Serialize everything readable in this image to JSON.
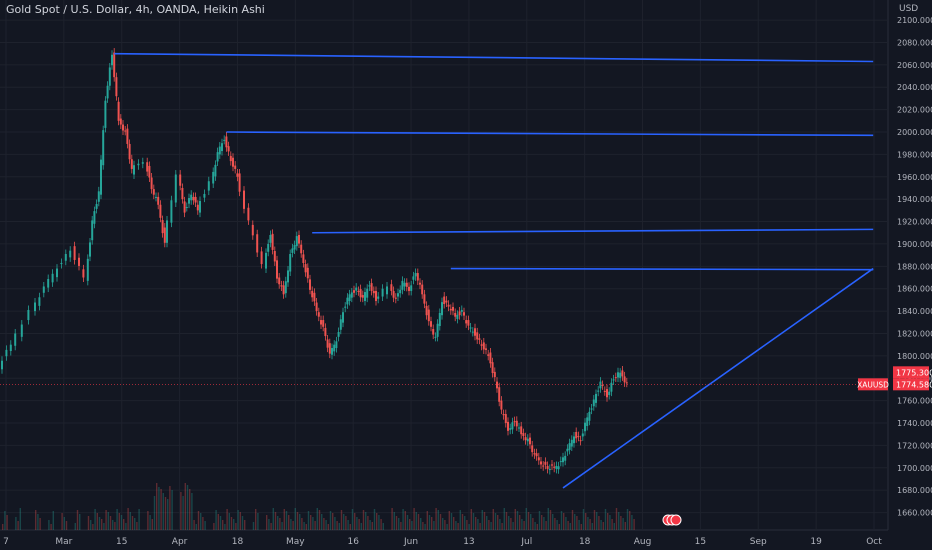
{
  "header": {
    "title": "Gold Spot / U.S. Dollar, 4h, OANDA, Heikin Ashi",
    "unit": "USD"
  },
  "chart_data": {
    "type": "candlestick",
    "symbol": "XAUUSD",
    "y_ticks": [
      1660,
      1680,
      1700,
      1720,
      1740,
      1760,
      1780,
      1800,
      1820,
      1840,
      1860,
      1880,
      1900,
      1920,
      1940,
      1960,
      1980,
      2000,
      2020,
      2040,
      2060,
      2080,
      2100
    ],
    "y_tick_labels": [
      "1660.000",
      "1680.000",
      "1700.000",
      "1720.000",
      "1740.000",
      "1760.000",
      "1780.000",
      "1800.000",
      "1820.000",
      "1840.000",
      "1860.000",
      "1880.000",
      "1900.000",
      "1920.000",
      "1940.000",
      "1960.000",
      "1980.000",
      "2000.000",
      "2020.000",
      "2040.000",
      "2060.000",
      "2080.000",
      "2100.000"
    ],
    "ylim": [
      1648,
      2109
    ],
    "x_ticks": [
      "7",
      "Mar",
      "15",
      "Apr",
      "18",
      "May",
      "16",
      "Jun",
      "13",
      "Jul",
      "18",
      "Aug",
      "15",
      "Sep",
      "19",
      "Oct"
    ],
    "price_labels": {
      "current": "1774.580",
      "alt": "1775.300",
      "symbol_label": "XAUUSD"
    },
    "price_path": [
      [
        0,
        1790
      ],
      [
        2,
        1810
      ],
      [
        5,
        1840
      ],
      [
        7,
        1860
      ],
      [
        9,
        1880
      ],
      [
        11,
        1895
      ],
      [
        13,
        1870
      ],
      [
        14,
        1920
      ],
      [
        15,
        1945
      ],
      [
        16,
        2030
      ],
      [
        17,
        2070
      ],
      [
        18,
        2010
      ],
      [
        19,
        2000
      ],
      [
        20,
        1965
      ],
      [
        22,
        1975
      ],
      [
        23,
        1950
      ],
      [
        24,
        1935
      ],
      [
        25,
        1900
      ],
      [
        27,
        1960
      ],
      [
        28,
        1930
      ],
      [
        29,
        1945
      ],
      [
        30,
        1930
      ],
      [
        32,
        1955
      ],
      [
        33,
        1980
      ],
      [
        34,
        1995
      ],
      [
        35,
        1975
      ],
      [
        36,
        1960
      ],
      [
        38,
        1920
      ],
      [
        40,
        1880
      ],
      [
        41,
        1910
      ],
      [
        42,
        1870
      ],
      [
        43,
        1855
      ],
      [
        44,
        1890
      ],
      [
        45,
        1905
      ],
      [
        46,
        1885
      ],
      [
        47,
        1860
      ],
      [
        48,
        1840
      ],
      [
        49,
        1825
      ],
      [
        50,
        1800
      ],
      [
        51,
        1815
      ],
      [
        52,
        1840
      ],
      [
        53,
        1855
      ],
      [
        54,
        1860
      ],
      [
        55,
        1850
      ],
      [
        56,
        1865
      ],
      [
        57,
        1850
      ],
      [
        59,
        1862
      ],
      [
        60,
        1850
      ],
      [
        61,
        1865
      ],
      [
        62,
        1860
      ],
      [
        63,
        1875
      ],
      [
        64,
        1855
      ],
      [
        65,
        1830
      ],
      [
        66,
        1815
      ],
      [
        67,
        1850
      ],
      [
        68,
        1845
      ],
      [
        69,
        1835
      ],
      [
        70,
        1840
      ],
      [
        71,
        1825
      ],
      [
        72,
        1820
      ],
      [
        73,
        1810
      ],
      [
        74,
        1800
      ],
      [
        75,
        1780
      ],
      [
        76,
        1750
      ],
      [
        77,
        1735
      ],
      [
        78,
        1742
      ],
      [
        79,
        1730
      ],
      [
        80,
        1725
      ],
      [
        81,
        1710
      ],
      [
        82,
        1705
      ],
      [
        83,
        1700
      ],
      [
        84,
        1700
      ],
      [
        85,
        1705
      ],
      [
        86,
        1715
      ],
      [
        87,
        1730
      ],
      [
        88,
        1725
      ],
      [
        89,
        1745
      ],
      [
        90,
        1760
      ],
      [
        91,
        1775
      ],
      [
        92,
        1765
      ],
      [
        93,
        1780
      ],
      [
        94,
        1785
      ],
      [
        95,
        1775
      ]
    ],
    "trend_lines": [
      {
        "from": [
          17,
          2070
        ],
        "to": [
          132,
          2063
        ]
      },
      {
        "from": [
          34,
          2000
        ],
        "to": [
          132,
          1997
        ]
      },
      {
        "from": [
          47,
          1910
        ],
        "to": [
          132,
          1913
        ]
      },
      {
        "from": [
          68,
          1878
        ],
        "to": [
          132,
          1877
        ]
      },
      {
        "from": [
          85,
          1682
        ],
        "to": [
          132,
          1878
        ]
      }
    ],
    "current_price": 1774.58
  },
  "colors": {
    "up": "#26a69a",
    "down": "#ef5350",
    "line": "#2962ff",
    "bg": "#131722",
    "grid": "#1e222d",
    "axis_text": "#b2b5be",
    "price_tag": "#f23645"
  }
}
